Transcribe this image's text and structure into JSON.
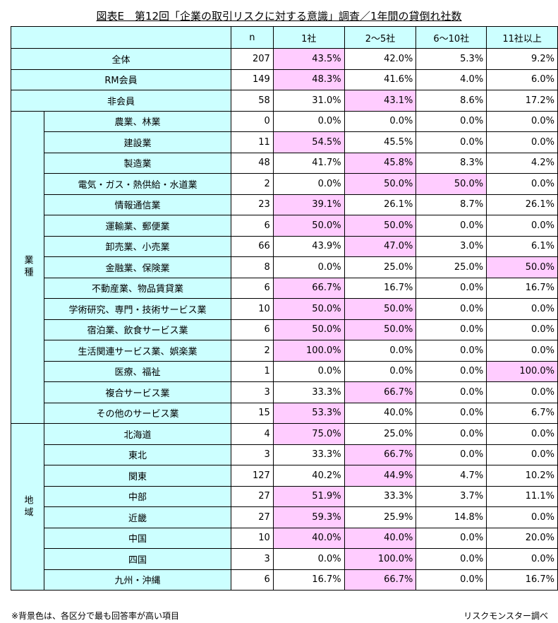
{
  "title": "図表E　第12回「企業の取引リスクに対する意識」調査／1年間の貸倒れ社数",
  "headers": [
    "n",
    "1社",
    "2～5社",
    "6～10社",
    "11社以上"
  ],
  "colors": {
    "header": "#ccffff",
    "highlight": "#ffccff"
  },
  "top_rows": [
    {
      "label": "全体",
      "n": "207",
      "vals": [
        "43.5%",
        "42.0%",
        "5.3%",
        "9.2%"
      ],
      "hl": [
        0
      ]
    },
    {
      "label": "RM会員",
      "n": "149",
      "vals": [
        "48.3%",
        "41.6%",
        "4.0%",
        "6.0%"
      ],
      "hl": [
        0
      ]
    },
    {
      "label": "非会員",
      "n": "58",
      "vals": [
        "31.0%",
        "43.1%",
        "8.6%",
        "17.2%"
      ],
      "hl": [
        1
      ]
    }
  ],
  "groups": [
    {
      "name": "業種",
      "rows": [
        {
          "label": "農業、林業",
          "n": "0",
          "vals": [
            "0.0%",
            "0.0%",
            "0.0%",
            "0.0%"
          ],
          "hl": []
        },
        {
          "label": "建設業",
          "n": "11",
          "vals": [
            "54.5%",
            "45.5%",
            "0.0%",
            "0.0%"
          ],
          "hl": [
            0
          ]
        },
        {
          "label": "製造業",
          "n": "48",
          "vals": [
            "41.7%",
            "45.8%",
            "8.3%",
            "4.2%"
          ],
          "hl": [
            1
          ]
        },
        {
          "label": "電気・ガス・熱供給・水道業",
          "n": "2",
          "vals": [
            "0.0%",
            "50.0%",
            "50.0%",
            "0.0%"
          ],
          "hl": [
            1,
            2
          ]
        },
        {
          "label": "情報通信業",
          "n": "23",
          "vals": [
            "39.1%",
            "26.1%",
            "8.7%",
            "26.1%"
          ],
          "hl": [
            0
          ]
        },
        {
          "label": "運輸業、郵便業",
          "n": "6",
          "vals": [
            "50.0%",
            "50.0%",
            "0.0%",
            "0.0%"
          ],
          "hl": [
            0,
            1
          ]
        },
        {
          "label": "卸売業、小売業",
          "n": "66",
          "vals": [
            "43.9%",
            "47.0%",
            "3.0%",
            "6.1%"
          ],
          "hl": [
            1
          ]
        },
        {
          "label": "金融業、保険業",
          "n": "8",
          "vals": [
            "0.0%",
            "25.0%",
            "25.0%",
            "50.0%"
          ],
          "hl": [
            3
          ]
        },
        {
          "label": "不動産業、物品賃貸業",
          "n": "6",
          "vals": [
            "66.7%",
            "16.7%",
            "0.0%",
            "16.7%"
          ],
          "hl": [
            0
          ]
        },
        {
          "label": "学術研究、専門・技術サービス業",
          "n": "10",
          "vals": [
            "50.0%",
            "50.0%",
            "0.0%",
            "0.0%"
          ],
          "hl": [
            0,
            1
          ]
        },
        {
          "label": "宿泊業、飲食サービス業",
          "n": "6",
          "vals": [
            "50.0%",
            "50.0%",
            "0.0%",
            "0.0%"
          ],
          "hl": [
            0,
            1
          ]
        },
        {
          "label": "生活関連サービス業、娯楽業",
          "n": "2",
          "vals": [
            "100.0%",
            "0.0%",
            "0.0%",
            "0.0%"
          ],
          "hl": [
            0
          ]
        },
        {
          "label": "医療、福祉",
          "n": "1",
          "vals": [
            "0.0%",
            "0.0%",
            "0.0%",
            "100.0%"
          ],
          "hl": [
            3
          ]
        },
        {
          "label": "複合サービス業",
          "n": "3",
          "vals": [
            "33.3%",
            "66.7%",
            "0.0%",
            "0.0%"
          ],
          "hl": [
            1
          ]
        },
        {
          "label": "その他のサービス業",
          "n": "15",
          "vals": [
            "53.3%",
            "40.0%",
            "0.0%",
            "6.7%"
          ],
          "hl": [
            0
          ]
        }
      ]
    },
    {
      "name": "地域",
      "rows": [
        {
          "label": "北海道",
          "n": "4",
          "vals": [
            "75.0%",
            "25.0%",
            "0.0%",
            "0.0%"
          ],
          "hl": [
            0
          ]
        },
        {
          "label": "東北",
          "n": "3",
          "vals": [
            "33.3%",
            "66.7%",
            "0.0%",
            "0.0%"
          ],
          "hl": [
            1
          ]
        },
        {
          "label": "関東",
          "n": "127",
          "vals": [
            "40.2%",
            "44.9%",
            "4.7%",
            "10.2%"
          ],
          "hl": [
            1
          ]
        },
        {
          "label": "中部",
          "n": "27",
          "vals": [
            "51.9%",
            "33.3%",
            "3.7%",
            "11.1%"
          ],
          "hl": [
            0
          ]
        },
        {
          "label": "近畿",
          "n": "27",
          "vals": [
            "59.3%",
            "25.9%",
            "14.8%",
            "0.0%"
          ],
          "hl": [
            0
          ]
        },
        {
          "label": "中国",
          "n": "10",
          "vals": [
            "40.0%",
            "40.0%",
            "0.0%",
            "20.0%"
          ],
          "hl": [
            0,
            1
          ]
        },
        {
          "label": "四国",
          "n": "3",
          "vals": [
            "0.0%",
            "100.0%",
            "0.0%",
            "0.0%"
          ],
          "hl": [
            1
          ]
        },
        {
          "label": "九州・沖縄",
          "n": "6",
          "vals": [
            "16.7%",
            "66.7%",
            "0.0%",
            "16.7%"
          ],
          "hl": [
            1
          ]
        }
      ]
    }
  ],
  "footnote": "※背景色は、各区分で最も回答率が高い項目",
  "source": "リスクモンスター調べ"
}
